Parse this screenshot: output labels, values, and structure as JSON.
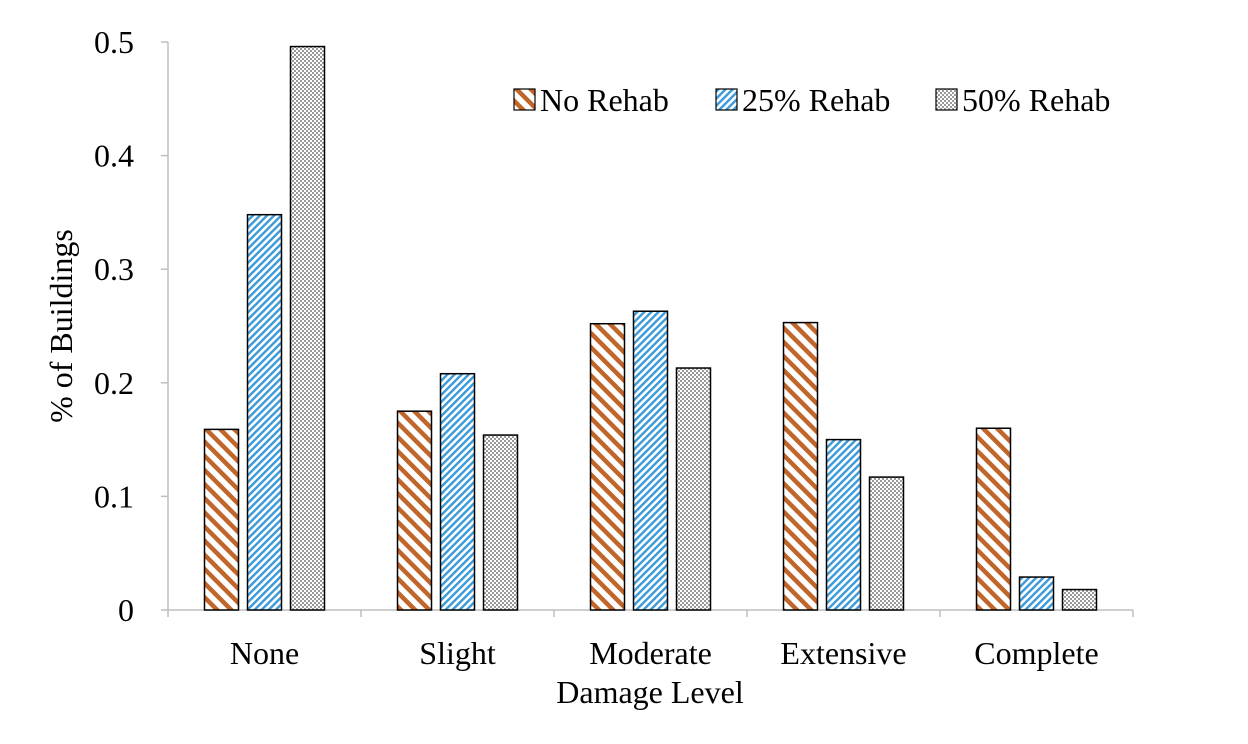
{
  "chart_data": {
    "type": "bar",
    "title": "",
    "xlabel": "Damage Level",
    "ylabel": "% of Buildings",
    "categories": [
      "None",
      "Slight",
      "Moderate",
      "Extensive",
      "Complete"
    ],
    "ylim": [
      0,
      0.5
    ],
    "yticks": [
      "0",
      "0.1",
      "0.2",
      "0.3",
      "0.4",
      "0.5"
    ],
    "grid": false,
    "legend_position": "top-right",
    "series": [
      {
        "name": "No Rehab",
        "values": [
          0.159,
          0.175,
          0.252,
          0.253,
          0.16
        ],
        "pattern": "diagonal-stripes",
        "color": "#c0662b"
      },
      {
        "name": "25% Rehab",
        "values": [
          0.348,
          0.208,
          0.263,
          0.15,
          0.029
        ],
        "pattern": "dense-diagonal-stripes",
        "color": "#3a9ad9"
      },
      {
        "name": "50% Rehab",
        "values": [
          0.496,
          0.154,
          0.213,
          0.117,
          0.018
        ],
        "pattern": "dots",
        "color": "#8c8c8c"
      }
    ]
  }
}
